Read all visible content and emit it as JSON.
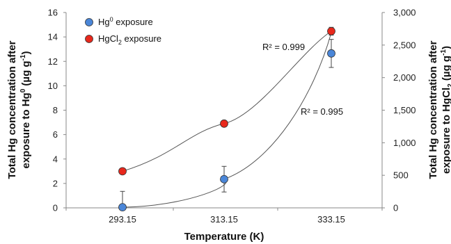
{
  "chart_data": {
    "type": "scatter",
    "categories": [
      "293.15",
      "313.15",
      "333.15"
    ],
    "xlabel": "Temperature (K)",
    "ylabel_left": {
      "line1": "Total Hg concentration after",
      "line2": "exposure to Hg",
      "sup": "0",
      "unit_pre": "(µg g",
      "unit_sup": "-1",
      "unit_post": ")"
    },
    "ylabel_right": {
      "line1": "Total Hg concentration after",
      "line2": "exposure to HgCl",
      "sub": "2",
      "unit_pre": "(µg g",
      "unit_sup": "-1",
      "unit_post": ")"
    },
    "yleft": {
      "lim": [
        0,
        16
      ],
      "ticks": [
        "0",
        "2",
        "4",
        "6",
        "8",
        "10",
        "12",
        "14",
        "16"
      ]
    },
    "yright": {
      "lim": [
        0,
        3000
      ],
      "ticks": [
        "0",
        "500",
        "1,000",
        "1,500",
        "2,000",
        "2,500",
        "3,000"
      ]
    },
    "series": [
      {
        "name": {
          "base": "Hg",
          "sup": "0",
          "rest": " exposure"
        },
        "axis": "left",
        "color": "#4a86d8",
        "values": [
          0.05,
          2.35,
          12.65
        ],
        "error": [
          1.3,
          1.05,
          1.15
        ],
        "r2": "R² = 0.995"
      },
      {
        "name": {
          "base": "HgCl",
          "sub": "2",
          "rest": " exposure"
        },
        "axis": "right",
        "color": "#e8281c",
        "values": [
          562,
          1294,
          2713
        ],
        "error": [
          0,
          0,
          60
        ],
        "r2": "R² = 0.999"
      }
    ],
    "legend_position": "top-left",
    "grid": false
  }
}
